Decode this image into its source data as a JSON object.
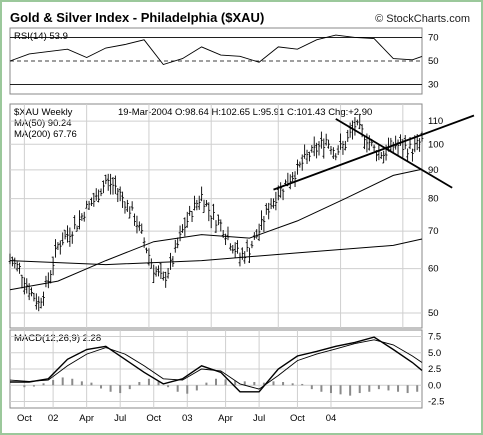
{
  "page": {
    "title": "Gold & Silver Index - Philadelphia ($XAU)",
    "credit": "© StockCharts.com"
  },
  "chart_data": [
    {
      "panel": "rsi",
      "type": "line",
      "label": "RSI(14) 53.9",
      "ylim": [
        22,
        78
      ],
      "y_ticks": [
        30,
        50,
        70
      ],
      "reference_lines": [
        {
          "y": 70,
          "style": "solid"
        },
        {
          "y": 50,
          "style": "dashed"
        },
        {
          "y": 30,
          "style": "solid"
        }
      ],
      "x_range": [
        0,
        86
      ],
      "x": [
        0,
        4,
        8,
        12,
        16,
        20,
        24,
        28,
        32,
        36,
        40,
        44,
        48,
        52,
        56,
        60,
        64,
        68,
        72,
        76,
        80,
        84,
        86
      ],
      "values": [
        50,
        56,
        58,
        60,
        53,
        61,
        64,
        68,
        47,
        52,
        62,
        55,
        54,
        49,
        62,
        60,
        68,
        72,
        70,
        69,
        52,
        51,
        53.9
      ]
    },
    {
      "panel": "price",
      "type": "bar",
      "label": "$XAU Weekly",
      "header": "19-Mar-2004 O:98.64 H:102.65 L:95.91 C:101.43 Chg:+2.90",
      "ma50_label": "MA(50) 90.24",
      "ma200_label": "MA(200) 67.76",
      "scale": "log",
      "ylim": [
        47,
        118
      ],
      "y_ticks": [
        50,
        60,
        70,
        80,
        90,
        100,
        110
      ],
      "x_range": [
        0,
        86
      ],
      "x_ticks": [
        {
          "x": 3,
          "label": "Oct"
        },
        {
          "x": 16,
          "label": "02"
        },
        {
          "x": 29,
          "label": "Apr"
        },
        {
          "x": 42,
          "label": "Jul"
        },
        {
          "x": 56,
          "label": "Oct"
        },
        {
          "x": 69,
          "label": "03"
        },
        {
          "x": 82,
          "label": "Apr"
        }
      ],
      "close_x": [
        0,
        2,
        4,
        6,
        8,
        10,
        12,
        14,
        16,
        18,
        20,
        22,
        24,
        26,
        28,
        30,
        32,
        34,
        36,
        38,
        40,
        42,
        44,
        46,
        48,
        50,
        52,
        54,
        56,
        58,
        60,
        62,
        64,
        66,
        68,
        70,
        72,
        74,
        76,
        78,
        80,
        82,
        84,
        86
      ],
      "close": [
        62,
        60,
        55,
        52,
        57,
        66,
        69,
        72,
        77,
        80,
        86,
        84,
        79,
        74,
        67,
        60,
        57,
        62,
        70,
        76,
        81,
        75,
        72,
        67,
        63,
        65,
        70,
        77,
        82,
        86,
        90,
        95,
        98,
        102,
        97,
        100,
        108,
        104,
        98,
        96,
        100,
        99,
        98,
        101.43
      ],
      "ma50_x": [
        0,
        10,
        20,
        30,
        40,
        50,
        60,
        70,
        80,
        86
      ],
      "ma50": [
        55,
        57,
        62,
        67,
        69,
        68,
        73,
        80,
        88,
        90.24
      ],
      "ma200_x": [
        0,
        20,
        40,
        60,
        80,
        86
      ],
      "ma200": [
        62,
        61,
        62,
        64,
        66,
        67.76
      ],
      "trendlines": [
        {
          "from": [
            55,
            83
          ],
          "to": [
            86,
            104
          ]
        },
        {
          "from": [
            68,
            111
          ],
          "to": [
            86,
            90
          ]
        }
      ]
    },
    {
      "panel": "macd",
      "type": "line",
      "label": "MACD(12,26,9) 2.28",
      "ylim": [
        -3.5,
        8.5
      ],
      "y_ticks": [
        7.5,
        5.0,
        2.5,
        0.0,
        -2.5
      ],
      "x_range": [
        0,
        86
      ],
      "x_ticks": [
        {
          "x": 3,
          "label": "Oct"
        },
        {
          "x": 9,
          "label": "02"
        },
        {
          "x": 16,
          "label": "Apr"
        },
        {
          "x": 23,
          "label": "Jul"
        },
        {
          "x": 30,
          "label": "Oct"
        },
        {
          "x": 37,
          "label": "03"
        },
        {
          "x": 45,
          "label": "Apr"
        },
        {
          "x": 52,
          "label": "Jul"
        },
        {
          "x": 60,
          "label": "Oct"
        },
        {
          "x": 67,
          "label": "04"
        }
      ],
      "macd_x": [
        0,
        4,
        8,
        12,
        16,
        20,
        24,
        28,
        32,
        36,
        40,
        44,
        48,
        52,
        56,
        60,
        64,
        68,
        72,
        76,
        80,
        84,
        86
      ],
      "macd": [
        0.5,
        0.5,
        1.0,
        4.0,
        5.5,
        6.0,
        4.0,
        2.0,
        0.2,
        1.0,
        3.0,
        2.0,
        -1.0,
        -1.0,
        2.5,
        4.5,
        5.2,
        6.0,
        6.6,
        7.4,
        5.5,
        3.5,
        2.28
      ],
      "signal_x": [
        0,
        4,
        8,
        12,
        16,
        20,
        24,
        28,
        32,
        36,
        40,
        44,
        48,
        52,
        56,
        60,
        64,
        68,
        72,
        76,
        80,
        84,
        86
      ],
      "signal": [
        0.8,
        0.6,
        0.8,
        3.0,
        4.8,
        5.8,
        4.8,
        3.0,
        1.0,
        0.8,
        2.5,
        2.2,
        0.2,
        -0.6,
        1.5,
        3.8,
        4.8,
        5.6,
        6.4,
        7.0,
        6.2,
        4.5,
        3.5
      ],
      "hist_x": [
        3,
        5,
        7,
        9,
        11,
        13,
        15,
        17,
        19,
        21,
        23,
        25,
        27,
        29,
        31,
        33,
        35,
        37,
        39,
        41,
        43,
        45,
        47,
        49,
        51,
        53,
        55,
        57,
        59,
        61,
        63,
        65,
        67,
        69,
        71,
        73,
        75,
        77,
        79,
        81,
        83,
        85
      ],
      "hist": [
        -0.3,
        -0.2,
        0.3,
        0.8,
        1.2,
        1.0,
        0.6,
        0.4,
        -0.5,
        -1.0,
        -1.2,
        -0.6,
        0.5,
        1.0,
        0.6,
        -0.3,
        -1.0,
        -1.3,
        -0.8,
        0.4,
        1.0,
        0.9,
        0.7,
        0.6,
        0.5,
        0.4,
        0.6,
        0.5,
        0.3,
        0.2,
        -0.6,
        -1.0,
        -1.2,
        -1.4,
        -1.6,
        -1.2,
        -1.0,
        -0.6,
        -0.8,
        -1.0,
        -1.2,
        -1.0
      ]
    }
  ]
}
